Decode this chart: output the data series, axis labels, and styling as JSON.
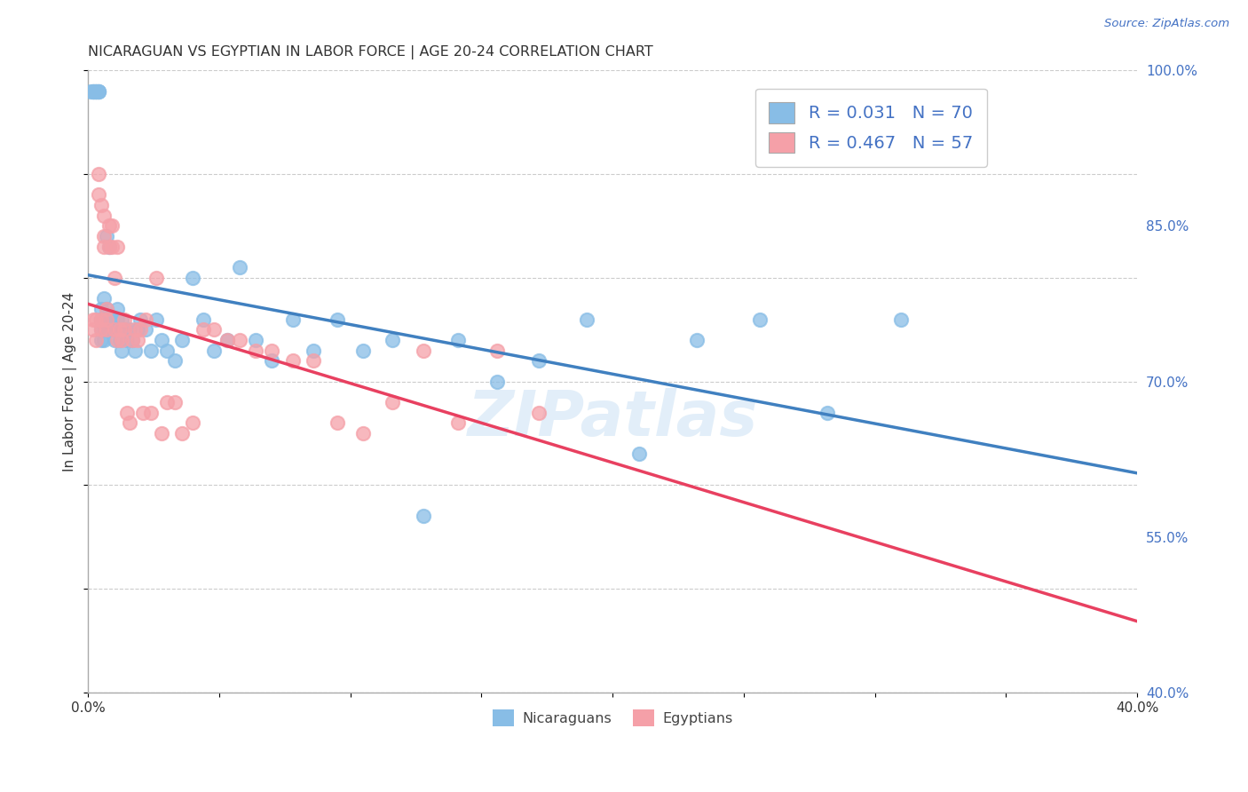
{
  "title": "NICARAGUAN VS EGYPTIAN IN LABOR FORCE | AGE 20-24 CORRELATION CHART",
  "source": "Source: ZipAtlas.com",
  "ylabel": "In Labor Force | Age 20-24",
  "watermark": "ZIPatlas",
  "xmin": 0.0,
  "xmax": 0.4,
  "ymin": 0.4,
  "ymax": 1.0,
  "xticks": [
    0.0,
    0.05,
    0.1,
    0.15,
    0.2,
    0.25,
    0.3,
    0.35,
    0.4
  ],
  "xtick_labels": [
    "0.0%",
    "",
    "",
    "",
    "",
    "",
    "",
    "",
    "40.0%"
  ],
  "ytick_labels_right": [
    "40.0%",
    "55.0%",
    "70.0%",
    "85.0%",
    "100.0%"
  ],
  "yticks_right": [
    0.4,
    0.55,
    0.7,
    0.85,
    1.0
  ],
  "nicaraguan_color": "#88bde6",
  "egyptian_color": "#f5a0a8",
  "trend_nicaraguan_color": "#4080c0",
  "trend_egyptian_color": "#e84060",
  "R_nicaraguan": 0.031,
  "N_nicaraguan": 70,
  "R_egyptian": 0.467,
  "N_egyptian": 57,
  "nicaraguan_x": [
    0.001,
    0.002,
    0.002,
    0.002,
    0.003,
    0.003,
    0.003,
    0.004,
    0.004,
    0.004,
    0.005,
    0.005,
    0.005,
    0.005,
    0.005,
    0.006,
    0.006,
    0.006,
    0.007,
    0.007,
    0.007,
    0.008,
    0.008,
    0.008,
    0.009,
    0.009,
    0.01,
    0.01,
    0.011,
    0.011,
    0.012,
    0.012,
    0.013,
    0.013,
    0.014,
    0.015,
    0.016,
    0.017,
    0.018,
    0.019,
    0.02,
    0.022,
    0.024,
    0.026,
    0.028,
    0.03,
    0.033,
    0.036,
    0.04,
    0.044,
    0.048,
    0.053,
    0.058,
    0.064,
    0.07,
    0.078,
    0.086,
    0.095,
    0.105,
    0.116,
    0.128,
    0.141,
    0.156,
    0.172,
    0.19,
    0.21,
    0.232,
    0.256,
    0.282,
    0.31
  ],
  "nicaraguan_y": [
    0.98,
    0.98,
    0.98,
    0.98,
    0.98,
    0.98,
    0.98,
    0.98,
    0.98,
    0.98,
    0.76,
    0.75,
    0.77,
    0.74,
    0.76,
    0.75,
    0.74,
    0.78,
    0.75,
    0.77,
    0.84,
    0.76,
    0.75,
    0.83,
    0.76,
    0.76,
    0.75,
    0.74,
    0.77,
    0.76,
    0.74,
    0.75,
    0.73,
    0.76,
    0.75,
    0.74,
    0.75,
    0.74,
    0.73,
    0.75,
    0.76,
    0.75,
    0.73,
    0.76,
    0.74,
    0.73,
    0.72,
    0.74,
    0.8,
    0.76,
    0.73,
    0.74,
    0.81,
    0.74,
    0.72,
    0.76,
    0.73,
    0.76,
    0.73,
    0.74,
    0.57,
    0.74,
    0.7,
    0.72,
    0.76,
    0.63,
    0.74,
    0.76,
    0.67,
    0.76
  ],
  "egyptian_x": [
    0.002,
    0.002,
    0.003,
    0.003,
    0.004,
    0.004,
    0.005,
    0.005,
    0.005,
    0.006,
    0.006,
    0.006,
    0.007,
    0.007,
    0.007,
    0.008,
    0.008,
    0.009,
    0.009,
    0.01,
    0.01,
    0.011,
    0.011,
    0.012,
    0.013,
    0.014,
    0.014,
    0.015,
    0.016,
    0.017,
    0.018,
    0.019,
    0.02,
    0.021,
    0.022,
    0.024,
    0.026,
    0.028,
    0.03,
    0.033,
    0.036,
    0.04,
    0.044,
    0.048,
    0.053,
    0.058,
    0.064,
    0.07,
    0.078,
    0.086,
    0.095,
    0.105,
    0.116,
    0.128,
    0.141,
    0.156,
    0.172
  ],
  "egyptian_y": [
    0.76,
    0.75,
    0.74,
    0.76,
    0.9,
    0.88,
    0.75,
    0.87,
    0.76,
    0.84,
    0.86,
    0.83,
    0.75,
    0.77,
    0.76,
    0.85,
    0.83,
    0.85,
    0.83,
    0.75,
    0.8,
    0.83,
    0.74,
    0.75,
    0.74,
    0.75,
    0.76,
    0.67,
    0.66,
    0.74,
    0.75,
    0.74,
    0.75,
    0.67,
    0.76,
    0.67,
    0.8,
    0.65,
    0.68,
    0.68,
    0.65,
    0.66,
    0.75,
    0.75,
    0.74,
    0.74,
    0.73,
    0.73,
    0.72,
    0.72,
    0.66,
    0.65,
    0.68,
    0.73,
    0.66,
    0.73,
    0.67
  ],
  "title_fontsize": 11.5,
  "axis_label_fontsize": 11,
  "tick_fontsize": 11,
  "legend_fontsize": 14,
  "background_color": "#ffffff",
  "grid_color": "#cccccc"
}
